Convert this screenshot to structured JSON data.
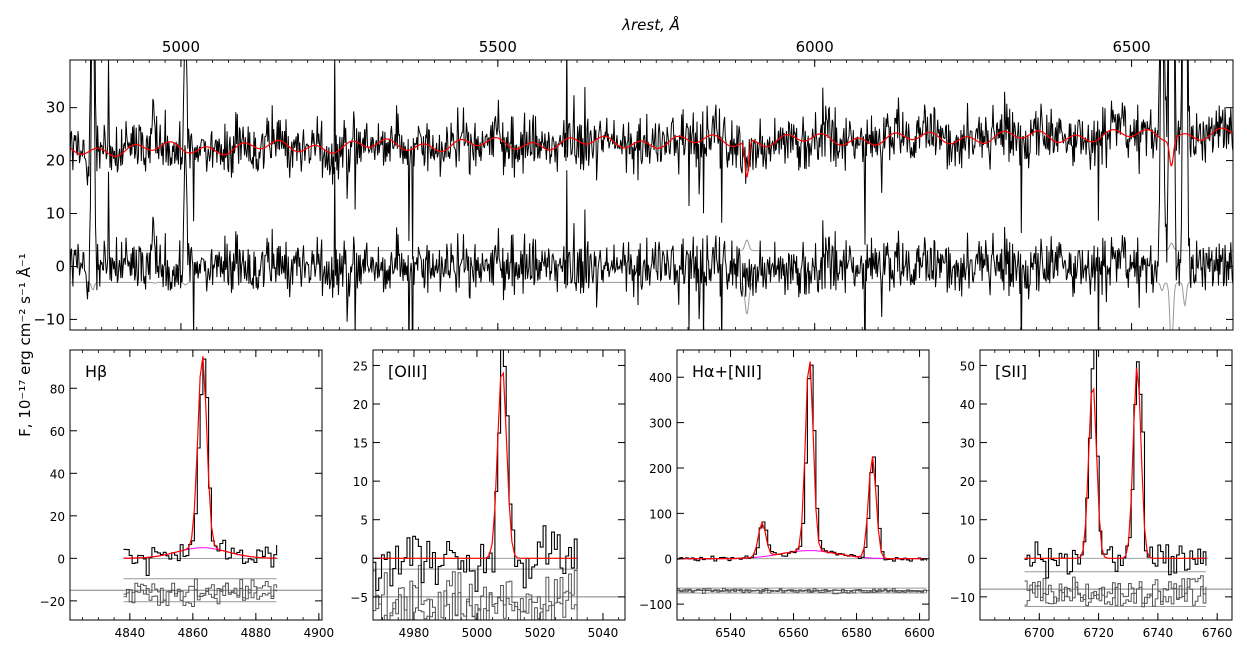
{
  "figure": {
    "ylabel": "F, 10⁻¹⁷ erg cm⁻² s⁻¹ Å⁻¹",
    "top_xlabel": "λrest, Å"
  },
  "colors": {
    "data": "#000000",
    "model": "#ff0000",
    "broad": "#ff00ff",
    "residual": "#555555",
    "error": "#999999",
    "zero": "#808080"
  },
  "chart_data": [
    {
      "type": "line",
      "panel": "full-spectrum",
      "xlabel": "λrest, Å",
      "xlabel_position": "top",
      "xlim": [
        4825,
        6660
      ],
      "ylim": [
        -12,
        39
      ],
      "xticks": [
        5000,
        5500,
        6000,
        6500
      ],
      "yticks": [
        -10,
        0,
        10,
        20,
        30
      ],
      "series": [
        {
          "role": "observed",
          "color": "#000000",
          "baseline": 22,
          "noise": 3.2
        },
        {
          "role": "model",
          "color": "#ff0000",
          "baseline": 22
        },
        {
          "role": "residual",
          "color": "#000000",
          "baseline": 0,
          "noise": 3.2
        },
        {
          "role": "error-upper",
          "color": "#999999",
          "baseline": 3
        },
        {
          "role": "error-lower",
          "color": "#999999",
          "baseline": -3
        }
      ],
      "features": [
        {
          "x": 4861,
          "type": "emission",
          "height": 70
        },
        {
          "x": 4959,
          "type": "emission",
          "height": 8
        },
        {
          "x": 5007,
          "type": "emission",
          "height": 25
        },
        {
          "x": 6548,
          "type": "emission",
          "height": 80
        },
        {
          "x": 6563,
          "type": "emission",
          "height": 430
        },
        {
          "x": 6584,
          "type": "emission",
          "height": 220
        },
        {
          "x": 6716,
          "type": "emission",
          "height": 45
        },
        {
          "x": 6731,
          "type": "emission",
          "height": 45
        },
        {
          "x": 5893,
          "type": "absorption",
          "depth": 10
        },
        {
          "x": 6563,
          "type": "absorption",
          "depth": 7
        }
      ]
    },
    {
      "type": "line",
      "panel": "hbeta",
      "title": "Hβ",
      "xlim": [
        4821,
        4901
      ],
      "ylim": [
        -29,
        98
      ],
      "xticks": [
        4840,
        4860,
        4880,
        4900
      ],
      "yticks": [
        -20,
        0,
        20,
        40,
        60,
        80
      ],
      "fit_range": [
        4838,
        4887
      ],
      "lines": [
        {
          "center": 4863,
          "height": 91,
          "sigma": 1.4
        }
      ],
      "broad": {
        "center": 4863,
        "height": 5,
        "sigma": 8
      },
      "residual_offset": -15,
      "noise": 3
    },
    {
      "type": "line",
      "panel": "oiii",
      "title": "[OIII]",
      "xlim": [
        4967,
        5047
      ],
      "ylim": [
        -8,
        27
      ],
      "xticks": [
        4980,
        5000,
        5020,
        5040
      ],
      "yticks": [
        -5,
        0,
        5,
        10,
        15,
        20,
        25
      ],
      "fit_range": [
        4967,
        5032
      ],
      "lines": [
        {
          "center": 5008,
          "height": 25,
          "sigma": 1.4
        }
      ],
      "residual_offset": -5,
      "noise": 2
    },
    {
      "type": "line",
      "panel": "halpha-nii",
      "title": "Hα+[NII]",
      "xlim": [
        6523,
        6603
      ],
      "ylim": [
        -135,
        460
      ],
      "xticks": [
        6540,
        6560,
        6580,
        6600
      ],
      "yticks": [
        -100,
        0,
        100,
        200,
        300,
        400
      ],
      "fit_range": [
        6523,
        6603
      ],
      "lines": [
        {
          "center": 6550,
          "height": 75,
          "sigma": 1.2
        },
        {
          "center": 6565,
          "height": 430,
          "sigma": 1.2
        },
        {
          "center": 6585,
          "height": 225,
          "sigma": 1.2
        }
      ],
      "broad": {
        "center": 6565,
        "height": 18,
        "sigma": 9
      },
      "residual_offset": -70,
      "noise": 3
    },
    {
      "type": "line",
      "panel": "sii",
      "title": "[SII]",
      "xlim": [
        6680,
        6765
      ],
      "ylim": [
        -16,
        54
      ],
      "xticks": [
        6700,
        6720,
        6740,
        6760
      ],
      "yticks": [
        -10,
        0,
        10,
        20,
        30,
        40,
        50
      ],
      "fit_range": [
        6695,
        6757
      ],
      "lines": [
        {
          "center": 6718,
          "height": 46,
          "sigma": 1.3
        },
        {
          "center": 6733,
          "height": 50,
          "sigma": 1.3
        }
      ],
      "residual_offset": -8,
      "noise": 2.5
    }
  ]
}
